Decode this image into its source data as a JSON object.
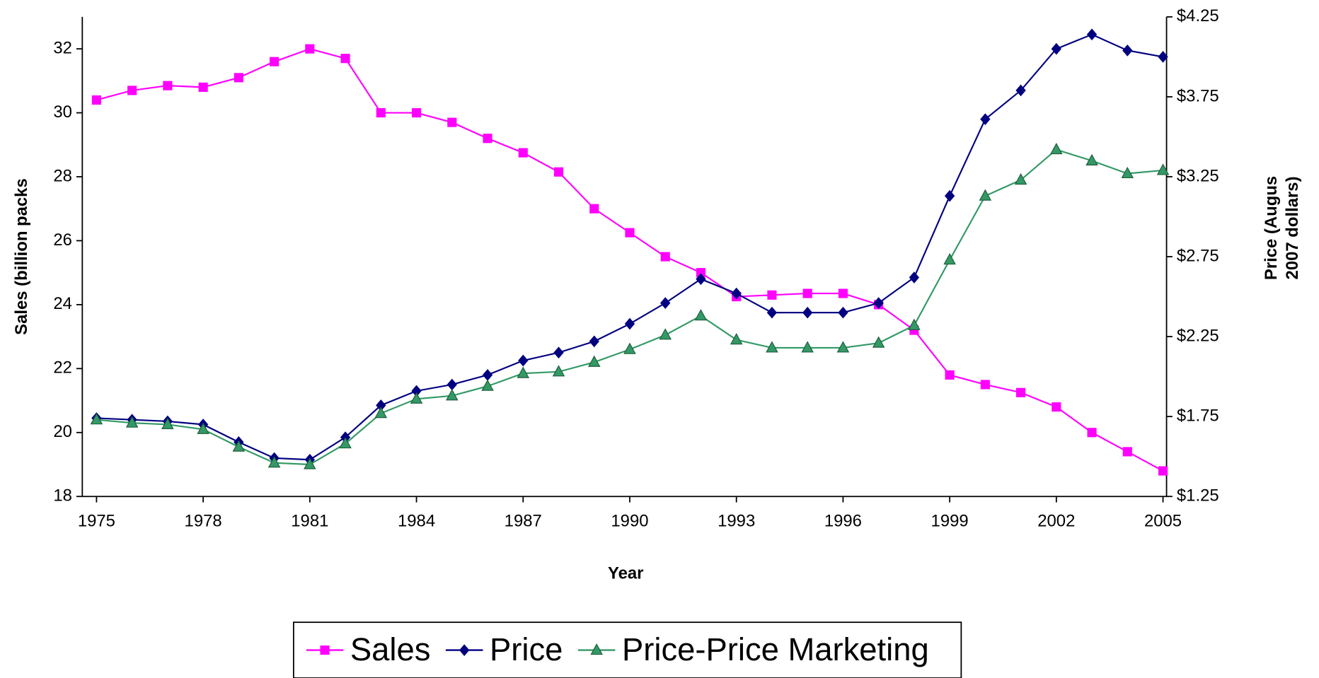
{
  "chart_data": {
    "type": "line",
    "x": [
      1975,
      1976,
      1977,
      1978,
      1979,
      1980,
      1981,
      1982,
      1983,
      1984,
      1985,
      1986,
      1987,
      1988,
      1989,
      1990,
      1991,
      1992,
      1993,
      1994,
      1995,
      1996,
      1997,
      1998,
      1999,
      2000,
      2001,
      2002,
      2003,
      2004,
      2005
    ],
    "xlim": [
      1974.6,
      2005.1
    ],
    "xticks": [
      1975,
      1978,
      1981,
      1984,
      1987,
      1990,
      1993,
      1996,
      1999,
      2002,
      2005
    ],
    "xlabel": "Year",
    "ylabel": "Sales (billion packs",
    "y2label": [
      "Price (Augus",
      "2007 dollars)"
    ],
    "ylim": [
      18,
      33
    ],
    "yticks": [
      18,
      20,
      22,
      24,
      26,
      28,
      30,
      32
    ],
    "y2lim": [
      1.25,
      4.25
    ],
    "y2ticks": [
      {
        "value": 1.25,
        "label": "$1.25"
      },
      {
        "value": 1.75,
        "label": "$1.75"
      },
      {
        "value": 2.25,
        "label": "$2.25"
      },
      {
        "value": 2.75,
        "label": "$2.75"
      },
      {
        "value": 3.25,
        "label": "$3.25"
      },
      {
        "value": 3.75,
        "label": "$3.75"
      },
      {
        "value": 4.25,
        "label": "$4.25"
      }
    ],
    "legend": "bottom",
    "series": [
      {
        "name": "Sales",
        "color": "#ff00ff",
        "marker": "square",
        "values": [
          30.4,
          30.7,
          30.85,
          30.8,
          31.1,
          31.6,
          32.0,
          31.7,
          30.0,
          30.0,
          29.7,
          29.2,
          28.75,
          28.15,
          27.0,
          26.25,
          25.5,
          25.0,
          24.25,
          24.3,
          24.35,
          24.35,
          24.0,
          23.2,
          21.8,
          21.5,
          21.25,
          20.8,
          20.0,
          19.4,
          18.8
        ]
      },
      {
        "name": "Price",
        "color": "#000080",
        "marker": "diamond",
        "axis": "y2",
        "values": [
          1.74,
          1.73,
          1.72,
          1.7,
          1.59,
          1.49,
          1.48,
          1.62,
          1.82,
          1.91,
          1.95,
          2.01,
          2.1,
          2.15,
          2.22,
          2.33,
          2.46,
          2.61,
          2.52,
          2.4,
          2.4,
          2.4,
          2.46,
          2.62,
          3.13,
          3.61,
          3.79,
          4.05,
          4.14,
          4.04,
          4.0
        ]
      },
      {
        "name": "Price-Price Marketing",
        "color": "#339966",
        "marker": "triangle",
        "axis": "y2",
        "values": [
          1.73,
          1.71,
          1.7,
          1.67,
          1.56,
          1.46,
          1.45,
          1.58,
          1.77,
          1.86,
          1.88,
          1.94,
          2.02,
          2.03,
          2.09,
          2.17,
          2.26,
          2.38,
          2.23,
          2.18,
          2.18,
          2.18,
          2.21,
          2.32,
          2.73,
          3.13,
          3.23,
          3.42,
          3.35,
          3.27,
          3.29
        ]
      }
    ]
  }
}
